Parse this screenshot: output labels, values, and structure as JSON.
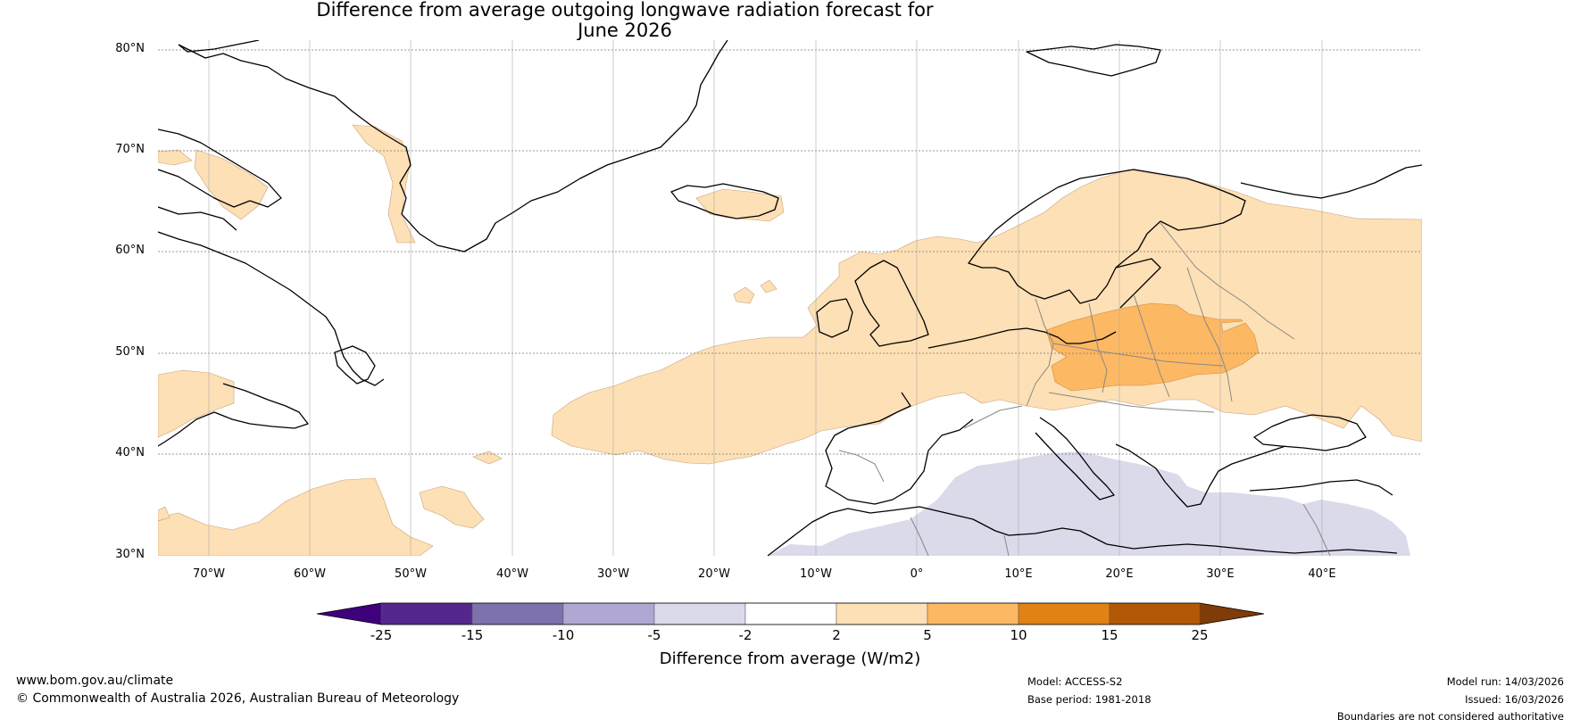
{
  "title": {
    "line1": "Difference from average outgoing longwave radiation forecast for",
    "line2": "June 2026"
  },
  "map": {
    "projection": "equirectangular",
    "lon_range": [
      -75,
      50
    ],
    "lat_range": [
      30,
      81
    ],
    "lat_labels": [
      "80°N",
      "70°N",
      "60°N",
      "50°N",
      "40°N",
      "30°N"
    ],
    "lat_values": [
      80,
      70,
      60,
      50,
      40,
      30
    ],
    "lon_labels": [
      "70°W",
      "60°W",
      "50°W",
      "40°W",
      "30°W",
      "20°W",
      "10°W",
      "0°",
      "10°E",
      "20°E",
      "30°E",
      "40°E"
    ],
    "lon_values": [
      -70,
      -60,
      -50,
      -40,
      -30,
      -20,
      -10,
      0,
      10,
      20,
      30,
      40
    ],
    "anomaly_regions": [
      {
        "category": "2 to 5",
        "area": "Europe, Western Russia and North Atlantic"
      },
      {
        "category": "5 to 10",
        "area": "Central and Eastern Europe"
      },
      {
        "category": "-5 to -2",
        "area": "North Africa and Eastern Mediterranean"
      }
    ]
  },
  "colorbar": {
    "ticks": [
      "-25",
      "-15",
      "-10",
      "-5",
      "-2",
      "2",
      "5",
      "10",
      "15",
      "25"
    ],
    "colors": [
      "#3f007d",
      "#54278f",
      "#7e72ad",
      "#b0a8d3",
      "#dadaeb",
      "#ffffff",
      "#fde0b5",
      "#fdb863",
      "#e08214",
      "#b35806",
      "#7f3b08"
    ],
    "label": "Difference from average (W/m2)"
  },
  "footer": {
    "website": "www.bom.gov.au/climate",
    "copyright": "© Commonwealth of Australia 2026, Australian Bureau of Meteorology",
    "model": "Model: ACCESS-S2",
    "base_period": "Base period: 1981-2018",
    "model_run": "Model run: 14/03/2026",
    "issued": "Issued: 16/03/2026",
    "disclaimer": "Boundaries are not considered authoritative"
  }
}
